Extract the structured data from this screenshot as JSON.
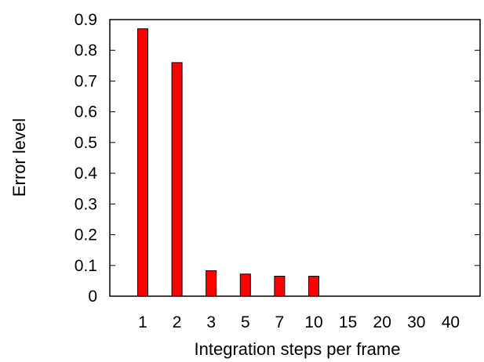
{
  "chart_data": {
    "type": "bar",
    "xlabel": "Integration steps per frame",
    "ylabel": "Error level",
    "categories": [
      "1",
      "2",
      "3",
      "5",
      "7",
      "10",
      "15",
      "20",
      "30",
      "40"
    ],
    "values": [
      0.87,
      0.76,
      0.083,
      0.072,
      0.065,
      0.065,
      0,
      0,
      0,
      0
    ],
    "ylim": [
      0,
      0.9
    ],
    "yticks": [
      "0",
      "0.1",
      "0.2",
      "0.3",
      "0.4",
      "0.5",
      "0.6",
      "0.7",
      "0.8",
      "0.9"
    ],
    "grid": false,
    "legend": "none",
    "bar_color": "#ff0000",
    "bar_stroke": "#000000"
  }
}
